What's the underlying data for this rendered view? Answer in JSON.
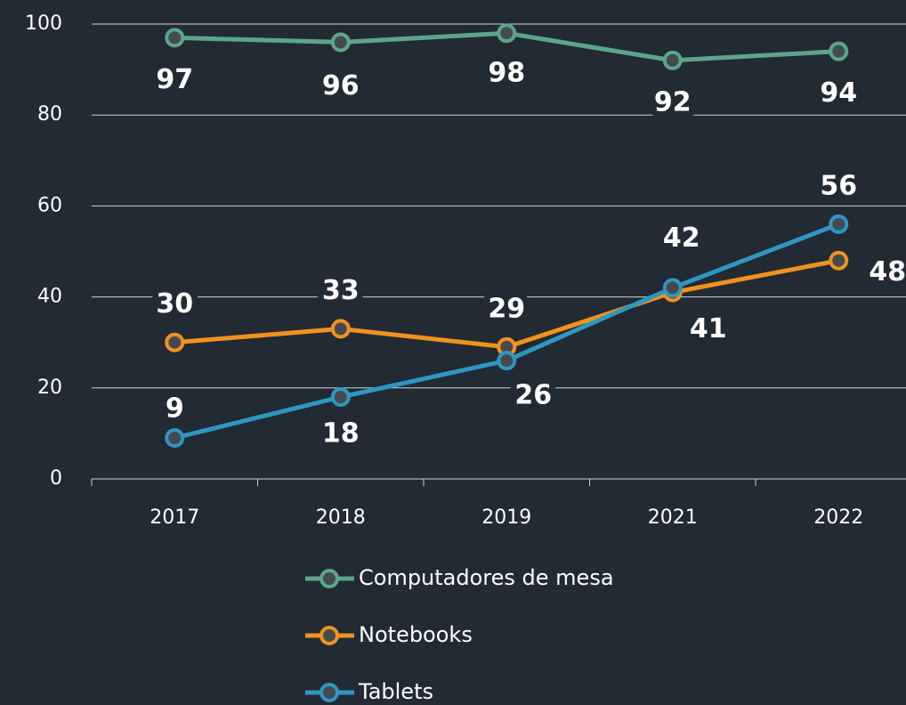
{
  "chart_data": {
    "type": "line",
    "categories": [
      "2017",
      "2018",
      "2019",
      "2021",
      "2022"
    ],
    "series": [
      {
        "name": "Computadores de mesa",
        "color": "#5ba68b",
        "values": [
          97,
          96,
          98,
          92,
          94
        ]
      },
      {
        "name": "Notebooks",
        "color": "#f0921e",
        "values": [
          30,
          33,
          29,
          41,
          48
        ]
      },
      {
        "name": "Tablets",
        "color": "#2f97c1",
        "values": [
          9,
          18,
          26,
          42,
          56
        ]
      }
    ],
    "ylim": [
      0,
      100
    ],
    "yticks": [
      0,
      20,
      40,
      60,
      80,
      100
    ],
    "grid": true,
    "legend": "bottom"
  }
}
